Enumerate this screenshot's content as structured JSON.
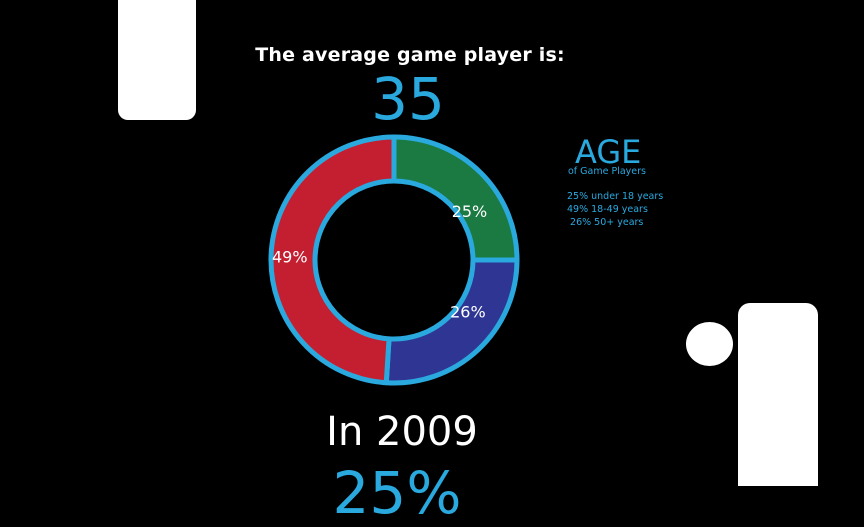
{
  "header": {
    "headline": "The average game player is:",
    "average_age": "35"
  },
  "chart_data": {
    "type": "pie",
    "style": "donut",
    "categories": [
      "under 18 years",
      "18-49 years",
      "50+ years"
    ],
    "values": [
      25,
      49,
      26
    ],
    "slice_labels": [
      "25%",
      "49%",
      "26%"
    ],
    "colors": [
      "#1b7a42",
      "#c41f31",
      "#2e3592"
    ],
    "ring_color": "#2aa9df",
    "legend": {
      "title": "AGE",
      "subtitle": "of Game Players",
      "lines": [
        "25% under 18 years",
        "49% 18-49 years",
        " 26% 50+ years"
      ],
      "placement": "right"
    }
  },
  "footer": {
    "year_text": "In 2009",
    "partial_value": "25%"
  }
}
